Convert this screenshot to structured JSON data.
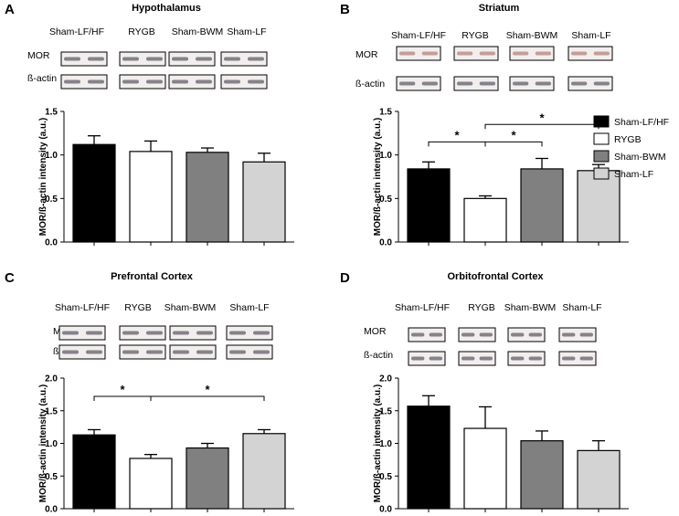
{
  "legend": [
    {
      "label": "Sham-LF/HF",
      "fill": "#000000"
    },
    {
      "label": "RYGB",
      "fill": "#ffffff"
    },
    {
      "label": "Sham-BWM",
      "fill": "#808080"
    },
    {
      "label": "Sham-LF",
      "fill": "#d3d3d3"
    }
  ],
  "blot_rows": [
    "MOR",
    "ß-actin"
  ],
  "chart_data": [
    {
      "panel": "A",
      "type": "bar",
      "title": "Hypothalamus",
      "ylabel": "MOR/ß-actin intensity (a.u.)",
      "ylim": [
        0,
        1.5
      ],
      "yticks": [
        "0.0",
        "0.5",
        "1.0",
        "1.5"
      ],
      "categories": [
        "Sham-LF/HF",
        "RYGB",
        "Sham-BWM",
        "Sham-LF"
      ],
      "values": [
        1.12,
        1.04,
        1.03,
        0.92
      ],
      "errors": [
        0.1,
        0.12,
        0.05,
        0.1
      ],
      "significance": []
    },
    {
      "panel": "B",
      "type": "bar",
      "title": "Striatum",
      "ylabel": "MOR/ß-actin intensity (a.u.)",
      "ylim": [
        0,
        1.5
      ],
      "yticks": [
        "0.0",
        "0.5",
        "1.0",
        "1.5"
      ],
      "categories": [
        "Sham-LF/HF",
        "RYGB",
        "Sham-BWM",
        "Sham-LF"
      ],
      "values": [
        0.84,
        0.5,
        0.84,
        0.82
      ],
      "errors": [
        0.08,
        0.03,
        0.12,
        0.07
      ],
      "significance": [
        {
          "from": 0,
          "to": 1,
          "y": 1.15,
          "label": "*"
        },
        {
          "from": 1,
          "to": 2,
          "y": 1.15,
          "label": "*"
        },
        {
          "from": 1,
          "to": 3,
          "y": 1.35,
          "label": "*"
        }
      ]
    },
    {
      "panel": "C",
      "type": "bar",
      "title": "Prefrontal Cortex",
      "ylabel": "MOR/ß-actin intensity (a.u.)",
      "ylim": [
        0,
        2.0
      ],
      "yticks": [
        "0.0",
        "0.5",
        "1.0",
        "1.5",
        "2.0"
      ],
      "categories": [
        "Sham-LF/HF",
        "RYGB",
        "Sham-BWM",
        "Sham-LF"
      ],
      "values": [
        1.13,
        0.77,
        0.93,
        1.15
      ],
      "errors": [
        0.08,
        0.06,
        0.07,
        0.06
      ],
      "significance": [
        {
          "from": 0,
          "to": 1,
          "y": 1.72,
          "label": "*"
        },
        {
          "from": 1,
          "to": 3,
          "y": 1.72,
          "label": "*"
        }
      ]
    },
    {
      "panel": "D",
      "type": "bar",
      "title": "Orbitofrontal Cortex",
      "ylabel": "MOR/ß-actin intensity (a.u.)",
      "ylim": [
        0,
        2.0
      ],
      "yticks": [
        "0.0",
        "0.5",
        "1.0",
        "1.5",
        "2.0"
      ],
      "categories": [
        "Sham-LF/HF",
        "RYGB",
        "Sham-BWM",
        "Sham-LF"
      ],
      "values": [
        1.57,
        1.23,
        1.04,
        0.89
      ],
      "errors": [
        0.16,
        0.33,
        0.15,
        0.15
      ],
      "significance": []
    }
  ]
}
